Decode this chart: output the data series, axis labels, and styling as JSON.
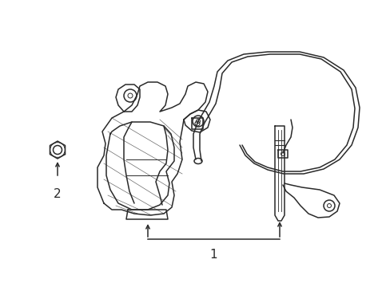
{
  "bg_color": "#ffffff",
  "line_color": "#2a2a2a",
  "label1": "1",
  "label2": "2",
  "fig_width": 4.89,
  "fig_height": 3.6,
  "dpi": 100
}
